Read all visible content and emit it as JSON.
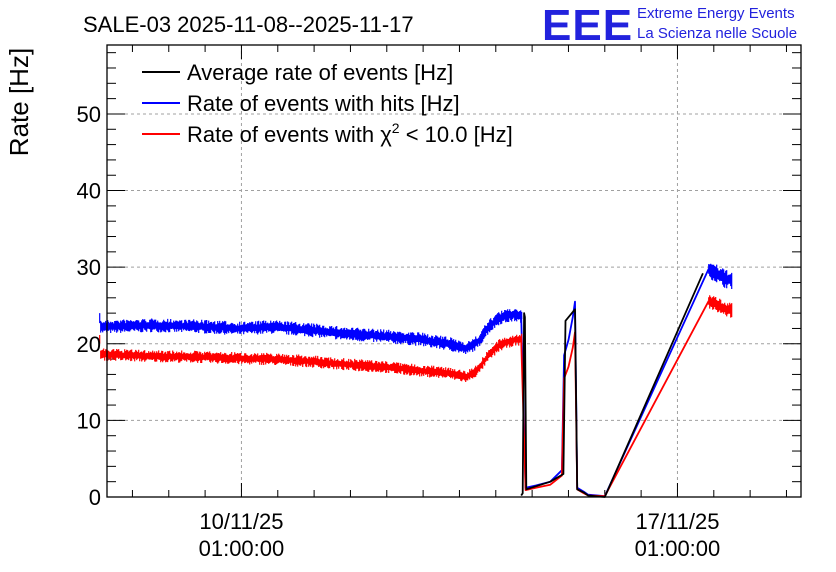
{
  "chart_data": {
    "type": "line",
    "title": "SALE-03 2025-11-08--2025-11-17",
    "ylabel": "Rate [Hz]",
    "xlabel": "",
    "ylim": [
      0,
      59
    ],
    "x_range_days": [
      0,
      9.55
    ],
    "y_ticks": [
      0,
      10,
      20,
      30,
      40,
      50
    ],
    "x_ticks": [
      {
        "day": 1.85,
        "line1": "10/11/25",
        "line2": "01:00:00"
      },
      {
        "day": 7.85,
        "line1": "17/11/25",
        "line2": "01:00:00"
      }
    ],
    "grid": true,
    "legend_position": "top-left",
    "series": [
      {
        "name": "Average rate of events [Hz]",
        "color": "#000000",
        "points": [
          [
            5.7,
            0.2
          ],
          [
            5.72,
            0.5
          ],
          [
            5.74,
            24.0
          ],
          [
            5.75,
            23.5
          ],
          [
            5.77,
            1.0
          ],
          [
            6.1,
            2.0
          ],
          [
            6.28,
            3.0
          ],
          [
            6.31,
            23.0
          ],
          [
            6.44,
            24.5
          ],
          [
            6.47,
            1.0
          ],
          [
            6.56,
            0.6
          ],
          [
            6.62,
            0.2
          ],
          [
            6.85,
            0.0
          ],
          [
            8.2,
            29.2
          ]
        ]
      },
      {
        "name": "Rate of events with hits [Hz]",
        "color": "#0000ff",
        "band": [
          [
            -0.1,
            22.2
          ],
          [
            0.6,
            22.4
          ],
          [
            1.2,
            22.3
          ],
          [
            1.8,
            22.0
          ],
          [
            2.3,
            22.2
          ],
          [
            2.8,
            21.8
          ],
          [
            3.3,
            21.3
          ],
          [
            3.8,
            21.0
          ],
          [
            4.3,
            20.6
          ],
          [
            4.7,
            20.0
          ],
          [
            4.95,
            19.4
          ],
          [
            5.1,
            20.2
          ],
          [
            5.25,
            22.2
          ],
          [
            5.4,
            23.4
          ],
          [
            5.6,
            23.8
          ],
          [
            5.72,
            23.6
          ]
        ],
        "band_noise": 0.9,
        "points": [
          [
            5.7,
            23.6
          ],
          [
            5.76,
            1.2
          ],
          [
            5.9,
            1.5
          ],
          [
            6.1,
            2.0
          ],
          [
            6.26,
            3.5
          ],
          [
            6.29,
            18.5
          ],
          [
            6.35,
            20.5
          ],
          [
            6.41,
            23.5
          ],
          [
            6.44,
            25.5
          ],
          [
            6.47,
            1.2
          ],
          [
            6.56,
            0.7
          ],
          [
            6.62,
            0.3
          ],
          [
            6.85,
            0.1
          ],
          [
            8.28,
            29.8
          ]
        ],
        "tail_band": [
          [
            8.28,
            29.8
          ],
          [
            8.5,
            28.5
          ],
          [
            8.6,
            28.3
          ]
        ],
        "tail_noise": 1.2
      },
      {
        "name": "Rate of events with χ² < 10.0 [Hz]",
        "color": "#ff0000",
        "band": [
          [
            -0.1,
            18.6
          ],
          [
            0.6,
            18.4
          ],
          [
            1.2,
            18.3
          ],
          [
            1.8,
            18.1
          ],
          [
            2.3,
            18.0
          ],
          [
            2.8,
            17.7
          ],
          [
            3.3,
            17.3
          ],
          [
            3.8,
            17.0
          ],
          [
            4.3,
            16.5
          ],
          [
            4.7,
            16.2
          ],
          [
            4.95,
            15.7
          ],
          [
            5.1,
            16.6
          ],
          [
            5.25,
            18.5
          ],
          [
            5.4,
            19.8
          ],
          [
            5.6,
            20.5
          ],
          [
            5.72,
            20.6
          ]
        ],
        "band_noise": 0.8,
        "points": [
          [
            5.7,
            20.5
          ],
          [
            5.76,
            0.9
          ],
          [
            5.9,
            1.2
          ],
          [
            6.1,
            1.6
          ],
          [
            6.26,
            2.8
          ],
          [
            6.29,
            15.5
          ],
          [
            6.35,
            17.0
          ],
          [
            6.41,
            19.5
          ],
          [
            6.44,
            21.5
          ],
          [
            6.47,
            1.0
          ],
          [
            6.56,
            0.5
          ],
          [
            6.62,
            0.2
          ],
          [
            6.85,
            0.1
          ],
          [
            8.28,
            25.6
          ]
        ],
        "tail_band": [
          [
            8.28,
            25.6
          ],
          [
            8.5,
            24.6
          ],
          [
            8.6,
            24.3
          ]
        ],
        "tail_noise": 1.0
      }
    ]
  },
  "legend": {
    "average_label": "Average rate of events [Hz]",
    "hits_label": "Rate of events with hits [Hz]",
    "chi2_prefix": "Rate of events with ",
    "chi2_symbol": "χ",
    "chi2_superscript": "2",
    "chi2_suffix": " < 10.0 [Hz]"
  },
  "brand": {
    "logo": "EEE",
    "line1": "Extreme Energy Events",
    "line2": "La Scienza nelle Scuole",
    "color": "#2222dd"
  }
}
